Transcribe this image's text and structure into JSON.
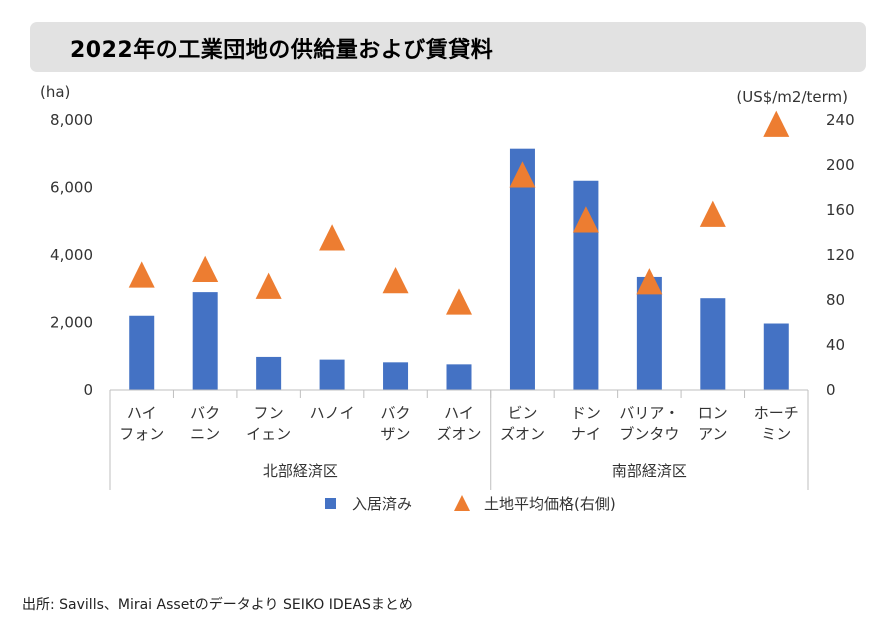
{
  "title": "2022年の工業団地の供給量および賃貸料",
  "source": "出所: Savills、Mirai Assetのデータより SEIKO IDEASまとめ",
  "chart_data": {
    "type": "bar",
    "categories": [
      [
        "ハイ",
        "フォン"
      ],
      [
        "バク",
        "ニン"
      ],
      [
        "フン",
        "イェン"
      ],
      [
        "ハノイ"
      ],
      [
        "バク",
        "ザン"
      ],
      [
        "ハイ",
        "ズオン"
      ],
      [
        "ビン",
        "ズオン"
      ],
      [
        "ドン",
        "ナイ"
      ],
      [
        "バリア・",
        "ブンタウ"
      ],
      [
        "ロン",
        "アン"
      ],
      [
        "ホーチ",
        "ミン"
      ]
    ],
    "groups": [
      {
        "label": "北部経済区",
        "start": 0,
        "end": 5
      },
      {
        "label": "南部経済区",
        "start": 6,
        "end": 10
      }
    ],
    "series": [
      {
        "name": "入居済み",
        "kind": "bar",
        "axis": "left",
        "color": "#4472c4",
        "values": [
          2200,
          2900,
          980,
          900,
          820,
          760,
          7150,
          6200,
          3350,
          2720,
          1970
        ]
      },
      {
        "name": "土地平均価格(右側)",
        "kind": "triangle",
        "axis": "right",
        "color": "#ed7d31",
        "values": [
          101,
          106,
          91,
          134,
          96,
          77,
          190,
          150,
          95,
          155,
          235
        ]
      }
    ],
    "left_axis": {
      "unit": "(ha)",
      "min": 0,
      "max": 8000,
      "ticks": [
        0,
        2000,
        4000,
        6000,
        8000
      ],
      "tick_labels": [
        "0",
        "2,000",
        "4,000",
        "6,000",
        "8,000"
      ]
    },
    "right_axis": {
      "unit": "(US$/m2/term)",
      "min": 0,
      "max": 240,
      "ticks": [
        0,
        40,
        80,
        120,
        160,
        200,
        240
      ],
      "tick_labels": [
        "0",
        "40",
        "80",
        "120",
        "160",
        "200",
        "240"
      ]
    },
    "grid": false,
    "legend_position": "bottom"
  }
}
